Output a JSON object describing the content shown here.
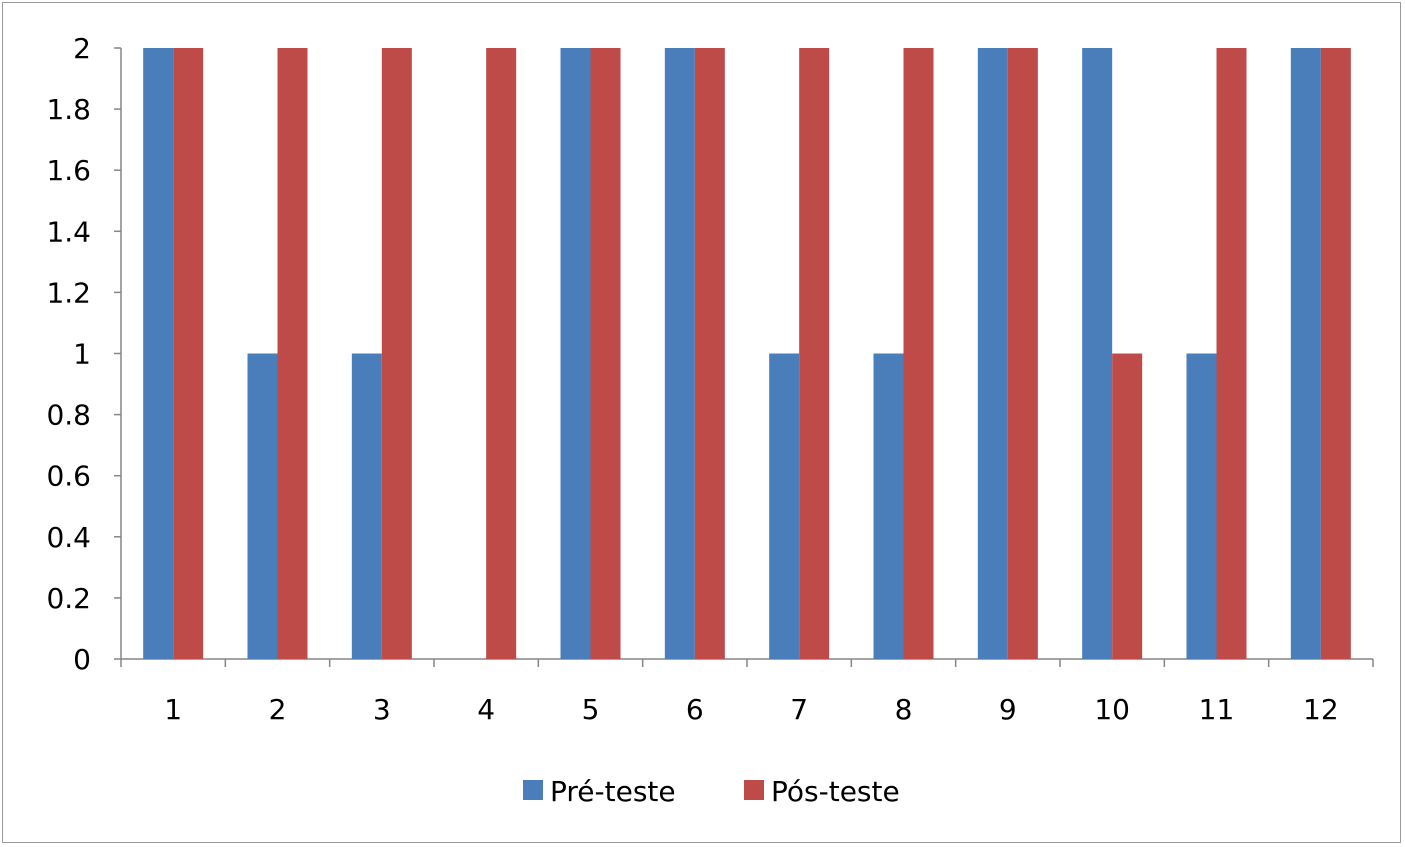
{
  "chart_data": {
    "type": "bar",
    "categories": [
      "1",
      "2",
      "3",
      "4",
      "5",
      "6",
      "7",
      "8",
      "9",
      "10",
      "11",
      "12"
    ],
    "series": [
      {
        "name": "Pré-teste",
        "color": "#4a7ebb",
        "values": [
          2,
          1,
          1,
          0,
          2,
          2,
          1,
          1,
          2,
          2,
          1,
          2
        ]
      },
      {
        "name": "Pós-teste",
        "color": "#be4b48",
        "values": [
          2,
          2,
          2,
          2,
          2,
          2,
          2,
          2,
          2,
          1,
          2,
          2
        ]
      }
    ],
    "yticks": [
      "0",
      "0.2",
      "0.4",
      "0.6",
      "0.8",
      "1",
      "1.2",
      "1.4",
      "1.6",
      "1.8",
      "2"
    ],
    "ylim": [
      0,
      2
    ],
    "grid": false,
    "legend_position": "bottom",
    "title": "",
    "xlabel": "",
    "ylabel": ""
  }
}
